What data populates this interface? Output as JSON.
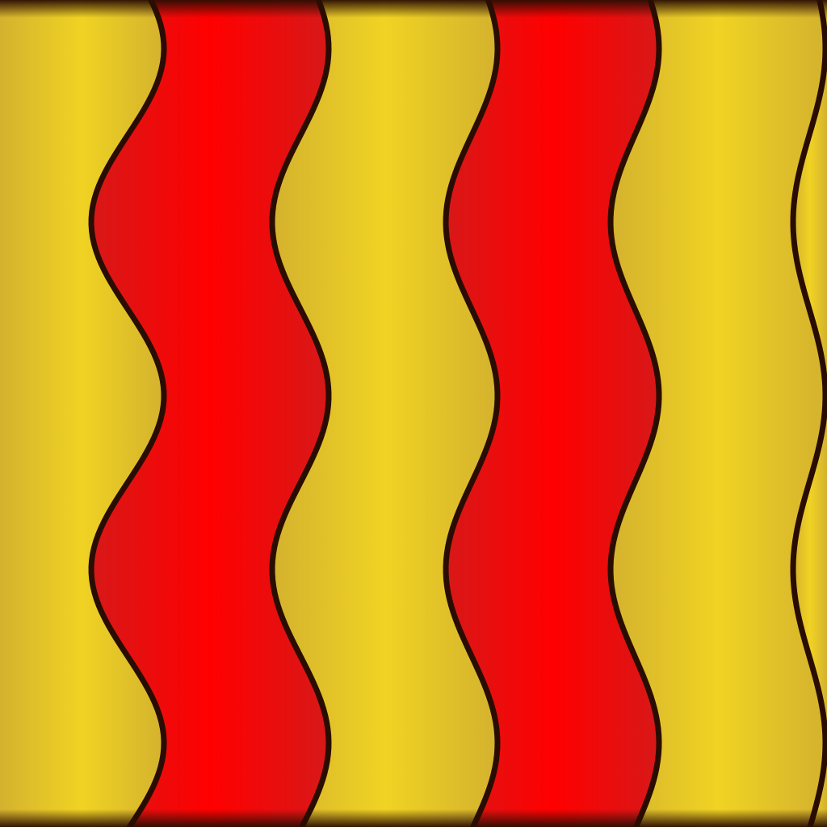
{
  "image": {
    "subject": "vertical-wavy-stripes-pattern",
    "stripe_order": [
      "yellow",
      "red",
      "yellow",
      "red",
      "yellow",
      "yellow"
    ],
    "colors": {
      "yellow_edge": "#d4b22e",
      "yellow_center": "#f0d323",
      "red_edge": "#d81818",
      "red_center": "#ff0000",
      "outline": "#2a0d02",
      "frame": "#3a1204"
    }
  }
}
